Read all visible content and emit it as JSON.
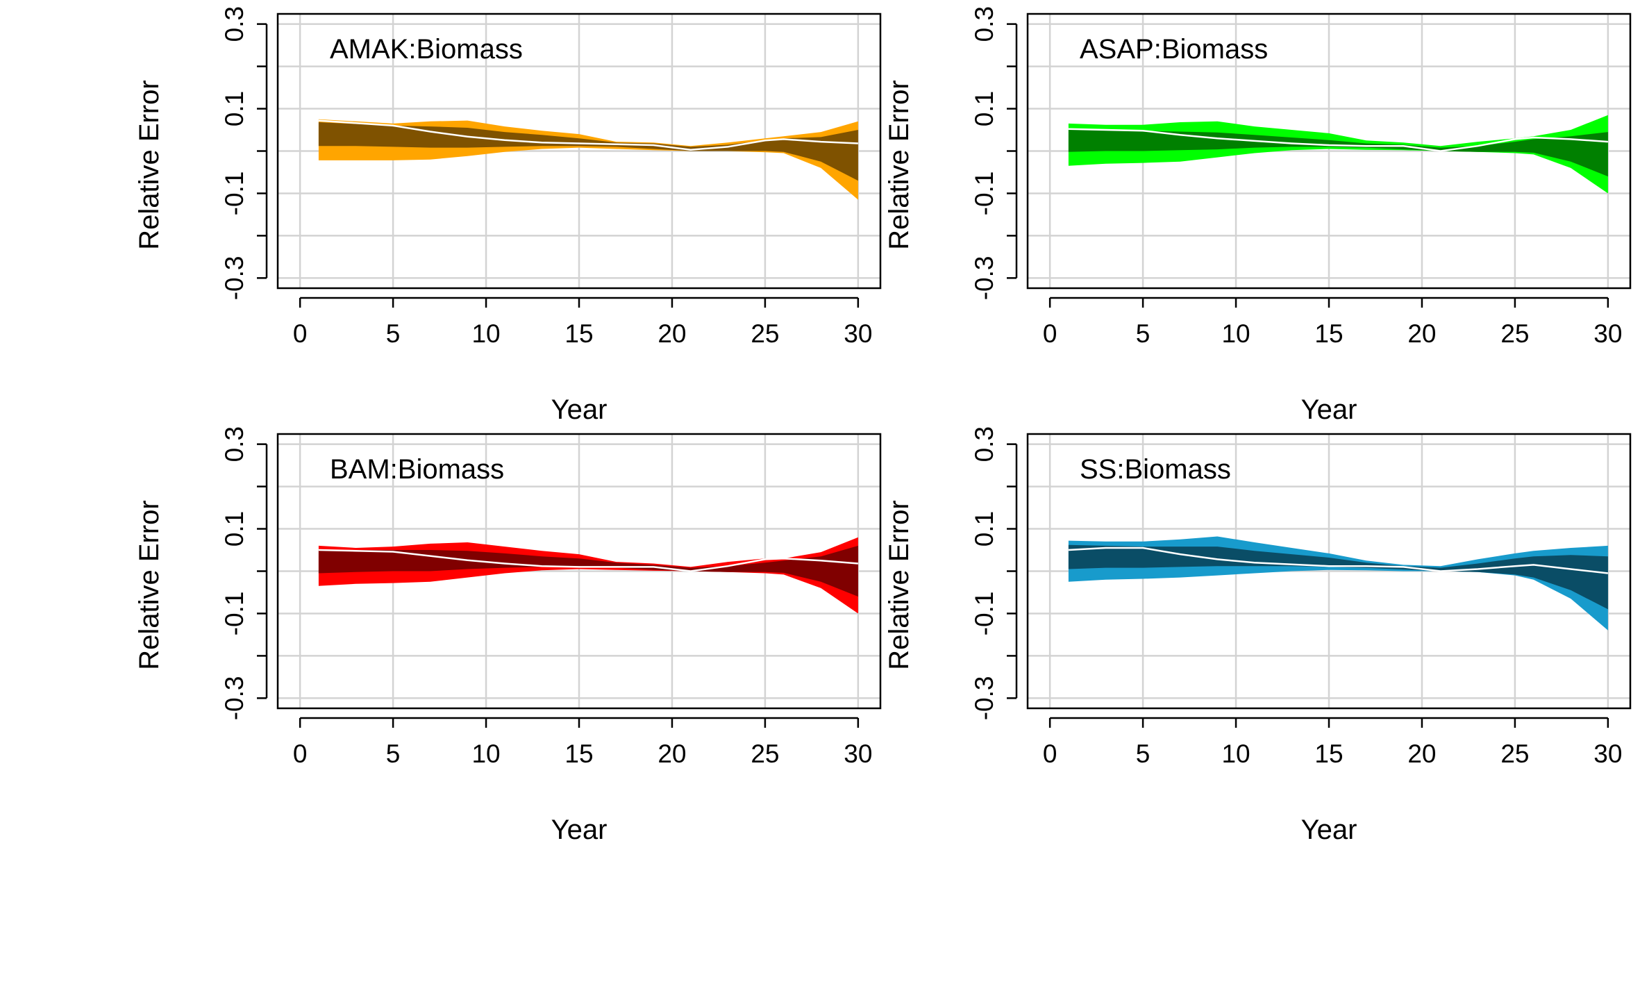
{
  "chart_data": [
    {
      "type": "area",
      "panel_label": "AMAK:Biomass",
      "xlabel": "Year",
      "ylabel": "Relative Error",
      "xlim": [
        0,
        30
      ],
      "ylim": [
        -0.3,
        0.3
      ],
      "xticks": [
        0,
        5,
        10,
        15,
        20,
        25,
        30
      ],
      "xtick_labels": [
        "0",
        "5",
        "10",
        "15",
        "20",
        "25",
        "30"
      ],
      "yticks": [
        -0.3,
        -0.2,
        -0.1,
        0,
        0.1,
        0.2,
        0.3
      ],
      "ytick_labels": [
        "-0.3",
        "",
        "-0.1",
        "",
        "0.1",
        "",
        "0.3"
      ],
      "grid": true,
      "colors": {
        "outer": "#FFA500",
        "inner": "#7F5200",
        "median": "#FFFFFF"
      },
      "x": [
        1,
        3,
        5,
        7,
        9,
        11,
        13,
        15,
        17,
        19,
        21,
        23,
        25,
        26,
        28,
        30
      ],
      "outer_upper": [
        0.075,
        0.07,
        0.065,
        0.07,
        0.072,
        0.058,
        0.048,
        0.04,
        0.022,
        0.02,
        0.012,
        0.02,
        0.03,
        0.035,
        0.045,
        0.07
      ],
      "outer_lower": [
        -0.022,
        -0.022,
        -0.022,
        -0.02,
        -0.012,
        -0.002,
        0.005,
        0.008,
        0.005,
        0.002,
        0.0,
        0.0,
        -0.003,
        -0.005,
        -0.04,
        -0.115
      ],
      "inner_upper": [
        0.068,
        0.064,
        0.06,
        0.058,
        0.055,
        0.045,
        0.038,
        0.03,
        0.02,
        0.018,
        0.01,
        0.015,
        0.025,
        0.03,
        0.033,
        0.05
      ],
      "inner_lower": [
        0.012,
        0.012,
        0.01,
        0.008,
        0.008,
        0.01,
        0.012,
        0.012,
        0.01,
        0.005,
        0.0,
        0.0,
        0.0,
        -0.002,
        -0.025,
        -0.07
      ],
      "median": [
        0.072,
        0.066,
        0.06,
        0.046,
        0.034,
        0.026,
        0.02,
        0.018,
        0.016,
        0.014,
        0.003,
        0.01,
        0.025,
        0.028,
        0.022,
        0.018
      ]
    },
    {
      "type": "area",
      "panel_label": "ASAP:Biomass",
      "xlabel": "Year",
      "ylabel": "Relative Error",
      "xlim": [
        0,
        30
      ],
      "ylim": [
        -0.3,
        0.3
      ],
      "xticks": [
        0,
        5,
        10,
        15,
        20,
        25,
        30
      ],
      "xtick_labels": [
        "0",
        "5",
        "10",
        "15",
        "20",
        "25",
        "30"
      ],
      "yticks": [
        -0.3,
        -0.2,
        -0.1,
        0,
        0.1,
        0.2,
        0.3
      ],
      "ytick_labels": [
        "-0.3",
        "",
        "-0.1",
        "",
        "0.1",
        "",
        "0.3"
      ],
      "grid": true,
      "colors": {
        "outer": "#00FF00",
        "inner": "#008000",
        "median": "#FFFFFF"
      },
      "x": [
        1,
        3,
        5,
        7,
        9,
        11,
        13,
        15,
        17,
        19,
        21,
        23,
        25,
        26,
        28,
        30
      ],
      "outer_upper": [
        0.065,
        0.062,
        0.062,
        0.068,
        0.07,
        0.058,
        0.05,
        0.042,
        0.025,
        0.02,
        0.012,
        0.022,
        0.03,
        0.035,
        0.05,
        0.085
      ],
      "outer_lower": [
        -0.035,
        -0.03,
        -0.028,
        -0.025,
        -0.015,
        -0.005,
        0.002,
        0.005,
        0.003,
        0.002,
        0.0,
        -0.002,
        -0.005,
        -0.008,
        -0.04,
        -0.1
      ],
      "inner_upper": [
        0.05,
        0.05,
        0.048,
        0.046,
        0.044,
        0.038,
        0.032,
        0.026,
        0.018,
        0.015,
        0.008,
        0.012,
        0.022,
        0.028,
        0.035,
        0.045
      ],
      "inner_lower": [
        -0.002,
        0.0,
        0.0,
        0.002,
        0.004,
        0.008,
        0.01,
        0.01,
        0.008,
        0.004,
        0.0,
        -0.002,
        -0.002,
        -0.004,
        -0.025,
        -0.06
      ],
      "median": [
        0.052,
        0.05,
        0.048,
        0.038,
        0.03,
        0.024,
        0.018,
        0.014,
        0.012,
        0.012,
        0.0,
        0.012,
        0.028,
        0.032,
        0.028,
        0.022
      ]
    },
    {
      "type": "area",
      "panel_label": "BAM:Biomass",
      "xlabel": "Year",
      "ylabel": "Relative Error",
      "xlim": [
        0,
        30
      ],
      "ylim": [
        -0.3,
        0.3
      ],
      "xticks": [
        0,
        5,
        10,
        15,
        20,
        25,
        30
      ],
      "xtick_labels": [
        "0",
        "5",
        "10",
        "15",
        "20",
        "25",
        "30"
      ],
      "yticks": [
        -0.3,
        -0.2,
        -0.1,
        0,
        0.1,
        0.2,
        0.3
      ],
      "ytick_labels": [
        "-0.3",
        "",
        "-0.1",
        "",
        "0.1",
        "",
        "0.3"
      ],
      "grid": true,
      "colors": {
        "outer": "#FF0000",
        "inner": "#800000",
        "median": "#FFFFFF"
      },
      "x": [
        1,
        3,
        5,
        7,
        9,
        11,
        13,
        15,
        17,
        19,
        21,
        23,
        25,
        26,
        28,
        30
      ],
      "outer_upper": [
        0.06,
        0.055,
        0.058,
        0.065,
        0.068,
        0.058,
        0.048,
        0.04,
        0.022,
        0.018,
        0.01,
        0.022,
        0.03,
        0.03,
        0.045,
        0.08
      ],
      "outer_lower": [
        -0.035,
        -0.03,
        -0.028,
        -0.025,
        -0.015,
        -0.005,
        0.002,
        0.005,
        0.003,
        0.001,
        0.0,
        -0.002,
        -0.005,
        -0.008,
        -0.04,
        -0.1
      ],
      "inner_upper": [
        0.05,
        0.05,
        0.05,
        0.05,
        0.048,
        0.042,
        0.035,
        0.03,
        0.02,
        0.015,
        0.008,
        0.012,
        0.02,
        0.025,
        0.035,
        0.06
      ],
      "inner_lower": [
        -0.005,
        -0.002,
        0.0,
        0.0,
        0.005,
        0.008,
        0.01,
        0.01,
        0.008,
        0.003,
        0.0,
        -0.002,
        -0.002,
        -0.004,
        -0.025,
        -0.06
      ],
      "median": [
        0.05,
        0.048,
        0.046,
        0.036,
        0.026,
        0.018,
        0.012,
        0.01,
        0.01,
        0.01,
        0.0,
        0.012,
        0.028,
        0.03,
        0.025,
        0.018
      ]
    },
    {
      "type": "area",
      "panel_label": "SS:Biomass",
      "xlabel": "Year",
      "ylabel": "Relative Error",
      "xlim": [
        0,
        30
      ],
      "ylim": [
        -0.3,
        0.3
      ],
      "xticks": [
        0,
        5,
        10,
        15,
        20,
        25,
        30
      ],
      "xtick_labels": [
        "0",
        "5",
        "10",
        "15",
        "20",
        "25",
        "30"
      ],
      "yticks": [
        -0.3,
        -0.2,
        -0.1,
        0,
        0.1,
        0.2,
        0.3
      ],
      "ytick_labels": [
        "-0.3",
        "",
        "-0.1",
        "",
        "0.1",
        "",
        "0.3"
      ],
      "grid": true,
      "colors": {
        "outer": "#189BCC",
        "inner": "#0A4D66",
        "median": "#FFFFFF"
      },
      "x": [
        1,
        3,
        5,
        7,
        9,
        11,
        13,
        15,
        17,
        19,
        21,
        23,
        25,
        26,
        28,
        30
      ],
      "outer_upper": [
        0.072,
        0.07,
        0.07,
        0.075,
        0.082,
        0.068,
        0.055,
        0.042,
        0.025,
        0.015,
        0.012,
        0.028,
        0.042,
        0.048,
        0.055,
        0.06
      ],
      "outer_lower": [
        -0.025,
        -0.02,
        -0.018,
        -0.015,
        -0.01,
        -0.005,
        0.0,
        0.003,
        0.002,
        0.0,
        0.0,
        -0.002,
        -0.01,
        -0.02,
        -0.065,
        -0.14
      ],
      "inner_upper": [
        0.062,
        0.06,
        0.058,
        0.058,
        0.058,
        0.048,
        0.04,
        0.032,
        0.02,
        0.012,
        0.008,
        0.018,
        0.03,
        0.035,
        0.038,
        0.035
      ],
      "inner_lower": [
        0.005,
        0.008,
        0.008,
        0.01,
        0.012,
        0.012,
        0.012,
        0.01,
        0.008,
        0.004,
        0.0,
        -0.002,
        -0.008,
        -0.015,
        -0.045,
        -0.09
      ],
      "median": [
        0.05,
        0.055,
        0.055,
        0.04,
        0.028,
        0.02,
        0.016,
        0.012,
        0.012,
        0.01,
        0.0,
        0.005,
        0.012,
        0.015,
        0.005,
        -0.005
      ]
    }
  ]
}
